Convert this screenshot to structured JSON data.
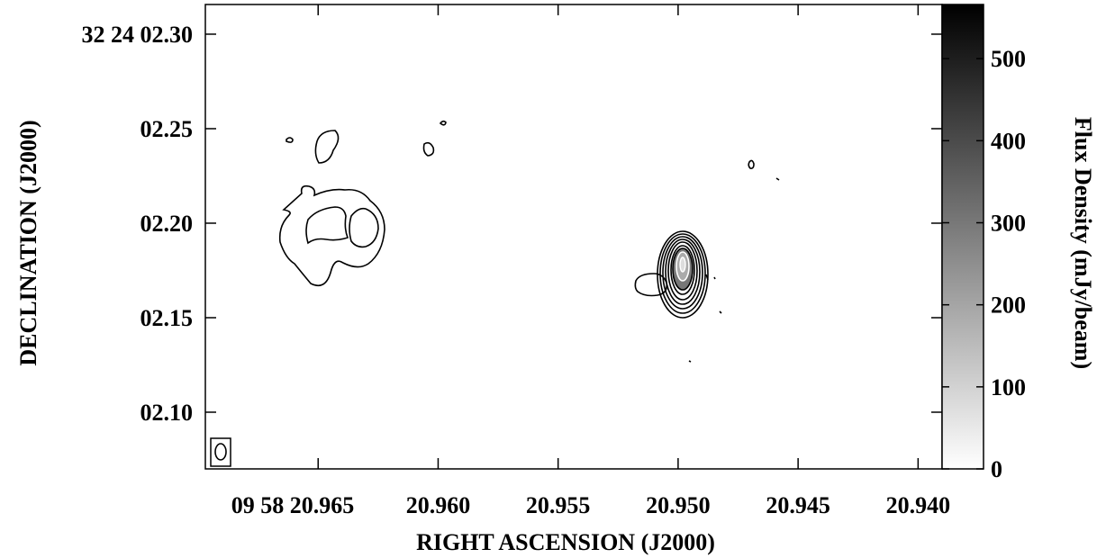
{
  "chart_data": {
    "type": "contour",
    "x_label": "RIGHT ASCENSION (J2000)",
    "y_label": "DECLINATION (J2000)",
    "colorbar_label": "Flux Density (mJy/beam)",
    "xlim": [
      20.9697,
      20.939
    ],
    "xticks": [
      {
        "value": 20.965,
        "label": "09 58 20.965"
      },
      {
        "value": 20.96,
        "label": "20.960"
      },
      {
        "value": 20.955,
        "label": "20.955"
      },
      {
        "value": 20.95,
        "label": "20.950"
      },
      {
        "value": 20.945,
        "label": "20.945"
      },
      {
        "value": 20.94,
        "label": "20.940"
      }
    ],
    "ylim": [
      2.07,
      2.3157
    ],
    "yticks": [
      {
        "value": 2.3,
        "label": "32 24 02.30"
      },
      {
        "value": 2.25,
        "label": "02.25"
      },
      {
        "value": 2.2,
        "label": "02.20"
      },
      {
        "value": 2.15,
        "label": "02.15"
      },
      {
        "value": 2.1,
        "label": "02.10"
      }
    ],
    "zlim": [
      0,
      566
    ],
    "zticks": [
      0,
      100,
      200,
      300,
      400,
      500
    ],
    "colormap": [
      "#ffffff",
      "#000000"
    ]
  }
}
